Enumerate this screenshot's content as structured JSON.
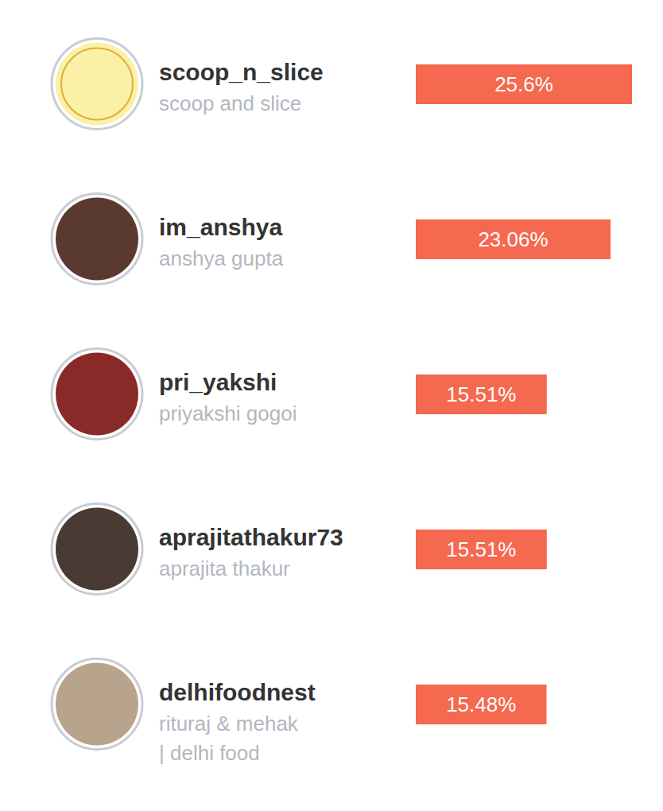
{
  "chart_data": {
    "type": "bar",
    "orientation": "horizontal",
    "categories": [
      "scoop_n_slice",
      "im_anshya",
      "pri_yakshi",
      "aprajitathakur73",
      "delhifoodnest"
    ],
    "names": [
      [
        "scoop and slice"
      ],
      [
        "anshya gupta"
      ],
      [
        "priyakshi gogoi"
      ],
      [
        "aprajita thakur"
      ],
      [
        "rituraj & mehak",
        "| delhi food"
      ]
    ],
    "values": [
      25.6,
      23.06,
      15.51,
      15.51,
      15.48
    ],
    "value_labels": [
      "25.6%",
      "23.06%",
      "15.51%",
      "15.51%",
      "15.48%"
    ],
    "color": "#f4694f",
    "xlim": [
      0,
      25.6
    ],
    "data_labels": true,
    "tick_labels": false,
    "grid": false
  }
}
